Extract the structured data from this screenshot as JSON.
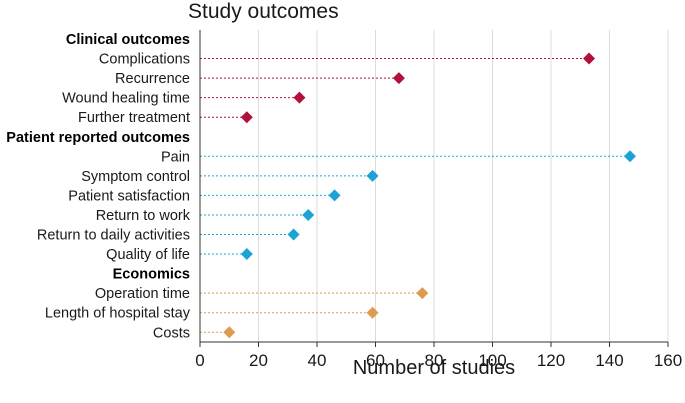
{
  "chart_data": {
    "type": "scatter",
    "title": "Study outcomes",
    "xlabel": "Number of studies",
    "ylabel": "",
    "xlim": [
      0,
      160
    ],
    "xticks": [
      0,
      20,
      40,
      60,
      80,
      100,
      120,
      140,
      160
    ],
    "grid": true,
    "marker": "diamond",
    "connector": "dotted line from x=0 to value",
    "groups": [
      {
        "name": "Clinical outcomes",
        "color": "#B0103A",
        "items": [
          {
            "label": "Complications",
            "value": 133
          },
          {
            "label": "Recurrence",
            "value": 68
          },
          {
            "label": "Wound healing time",
            "value": 34
          },
          {
            "label": "Further treatment",
            "value": 16
          }
        ]
      },
      {
        "name": "Patient reported outcomes",
        "color": "#1BA3D6",
        "items": [
          {
            "label": "Pain",
            "value": 147
          },
          {
            "label": "Symptom control",
            "value": 59
          },
          {
            "label": "Patient satisfaction",
            "value": 46
          },
          {
            "label": "Return to work",
            "value": 37
          },
          {
            "label": "Return to daily activities",
            "value": 32
          },
          {
            "label": "Quality of life",
            "value": 16
          }
        ]
      },
      {
        "name": "Economics",
        "color": "#E09A4F",
        "items": [
          {
            "label": "Operation time",
            "value": 76
          },
          {
            "label": "Length of hospital stay",
            "value": 59
          },
          {
            "label": "Costs",
            "value": 10
          }
        ]
      }
    ]
  }
}
